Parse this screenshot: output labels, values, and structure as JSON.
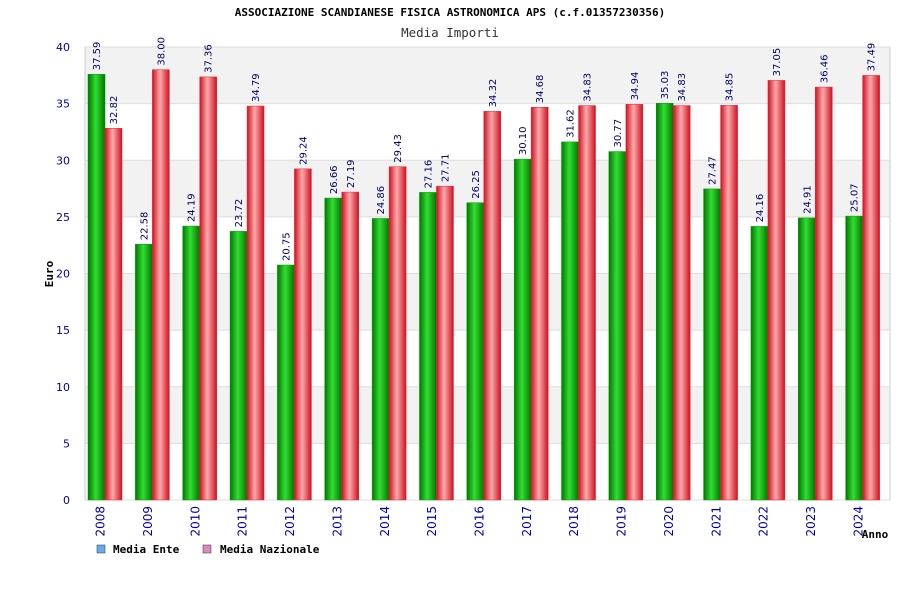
{
  "colors": {
    "series_ente": "#00a000",
    "series_nazionale": "#ee2233",
    "legend_ente": "#66aaee",
    "legend_nazionale": "#dd88bb",
    "tick_text": "#0000aa",
    "value_text": "#000066",
    "band": "#f2f2f2"
  },
  "chart_data": {
    "type": "bar",
    "title": "ASSOCIAZIONE SCANDIANESE FISICA ASTRONOMICA APS (c.f.01357230356)",
    "subtitle": "Media Importi",
    "ylabel": "Euro",
    "xlabel": "Anno",
    "ylim": [
      0,
      40
    ],
    "yticks": [
      0,
      5,
      10,
      15,
      20,
      25,
      30,
      35,
      40
    ],
    "grid": true,
    "legend_position": "bottom-left",
    "categories": [
      "2008",
      "2009",
      "2010",
      "2011",
      "2012",
      "2013",
      "2014",
      "2015",
      "2016",
      "2017",
      "2018",
      "2019",
      "2020",
      "2021",
      "2022",
      "2023",
      "2024"
    ],
    "series": [
      {
        "name": "Media Ente",
        "values": [
          37.59,
          22.58,
          24.19,
          23.72,
          20.75,
          26.66,
          24.86,
          27.16,
          26.25,
          30.1,
          31.62,
          30.77,
          35.03,
          27.47,
          24.16,
          24.91,
          25.07
        ],
        "labels": [
          "37.59",
          "22.58",
          "24.19",
          "23.72",
          "20.75",
          "26.66",
          "24.86",
          "27.16",
          "26.25",
          "30.10",
          "31.62",
          "30.77",
          "35.03",
          "27.47",
          "24.16",
          "24.91",
          "25.07"
        ]
      },
      {
        "name": "Media Nazionale",
        "values": [
          32.82,
          38.0,
          37.36,
          34.79,
          29.24,
          27.19,
          29.43,
          27.71,
          34.32,
          34.68,
          34.83,
          34.94,
          34.83,
          34.85,
          37.05,
          36.46,
          37.49
        ],
        "labels": [
          "32.82",
          "38.00",
          "37.36",
          "34.79",
          "29.24",
          "27.19",
          "29.43",
          "27.71",
          "34.32",
          "34.68",
          "34.83",
          "34.94",
          "34.83",
          "34.85",
          "37.05",
          "36.46",
          "37.49"
        ]
      }
    ]
  }
}
